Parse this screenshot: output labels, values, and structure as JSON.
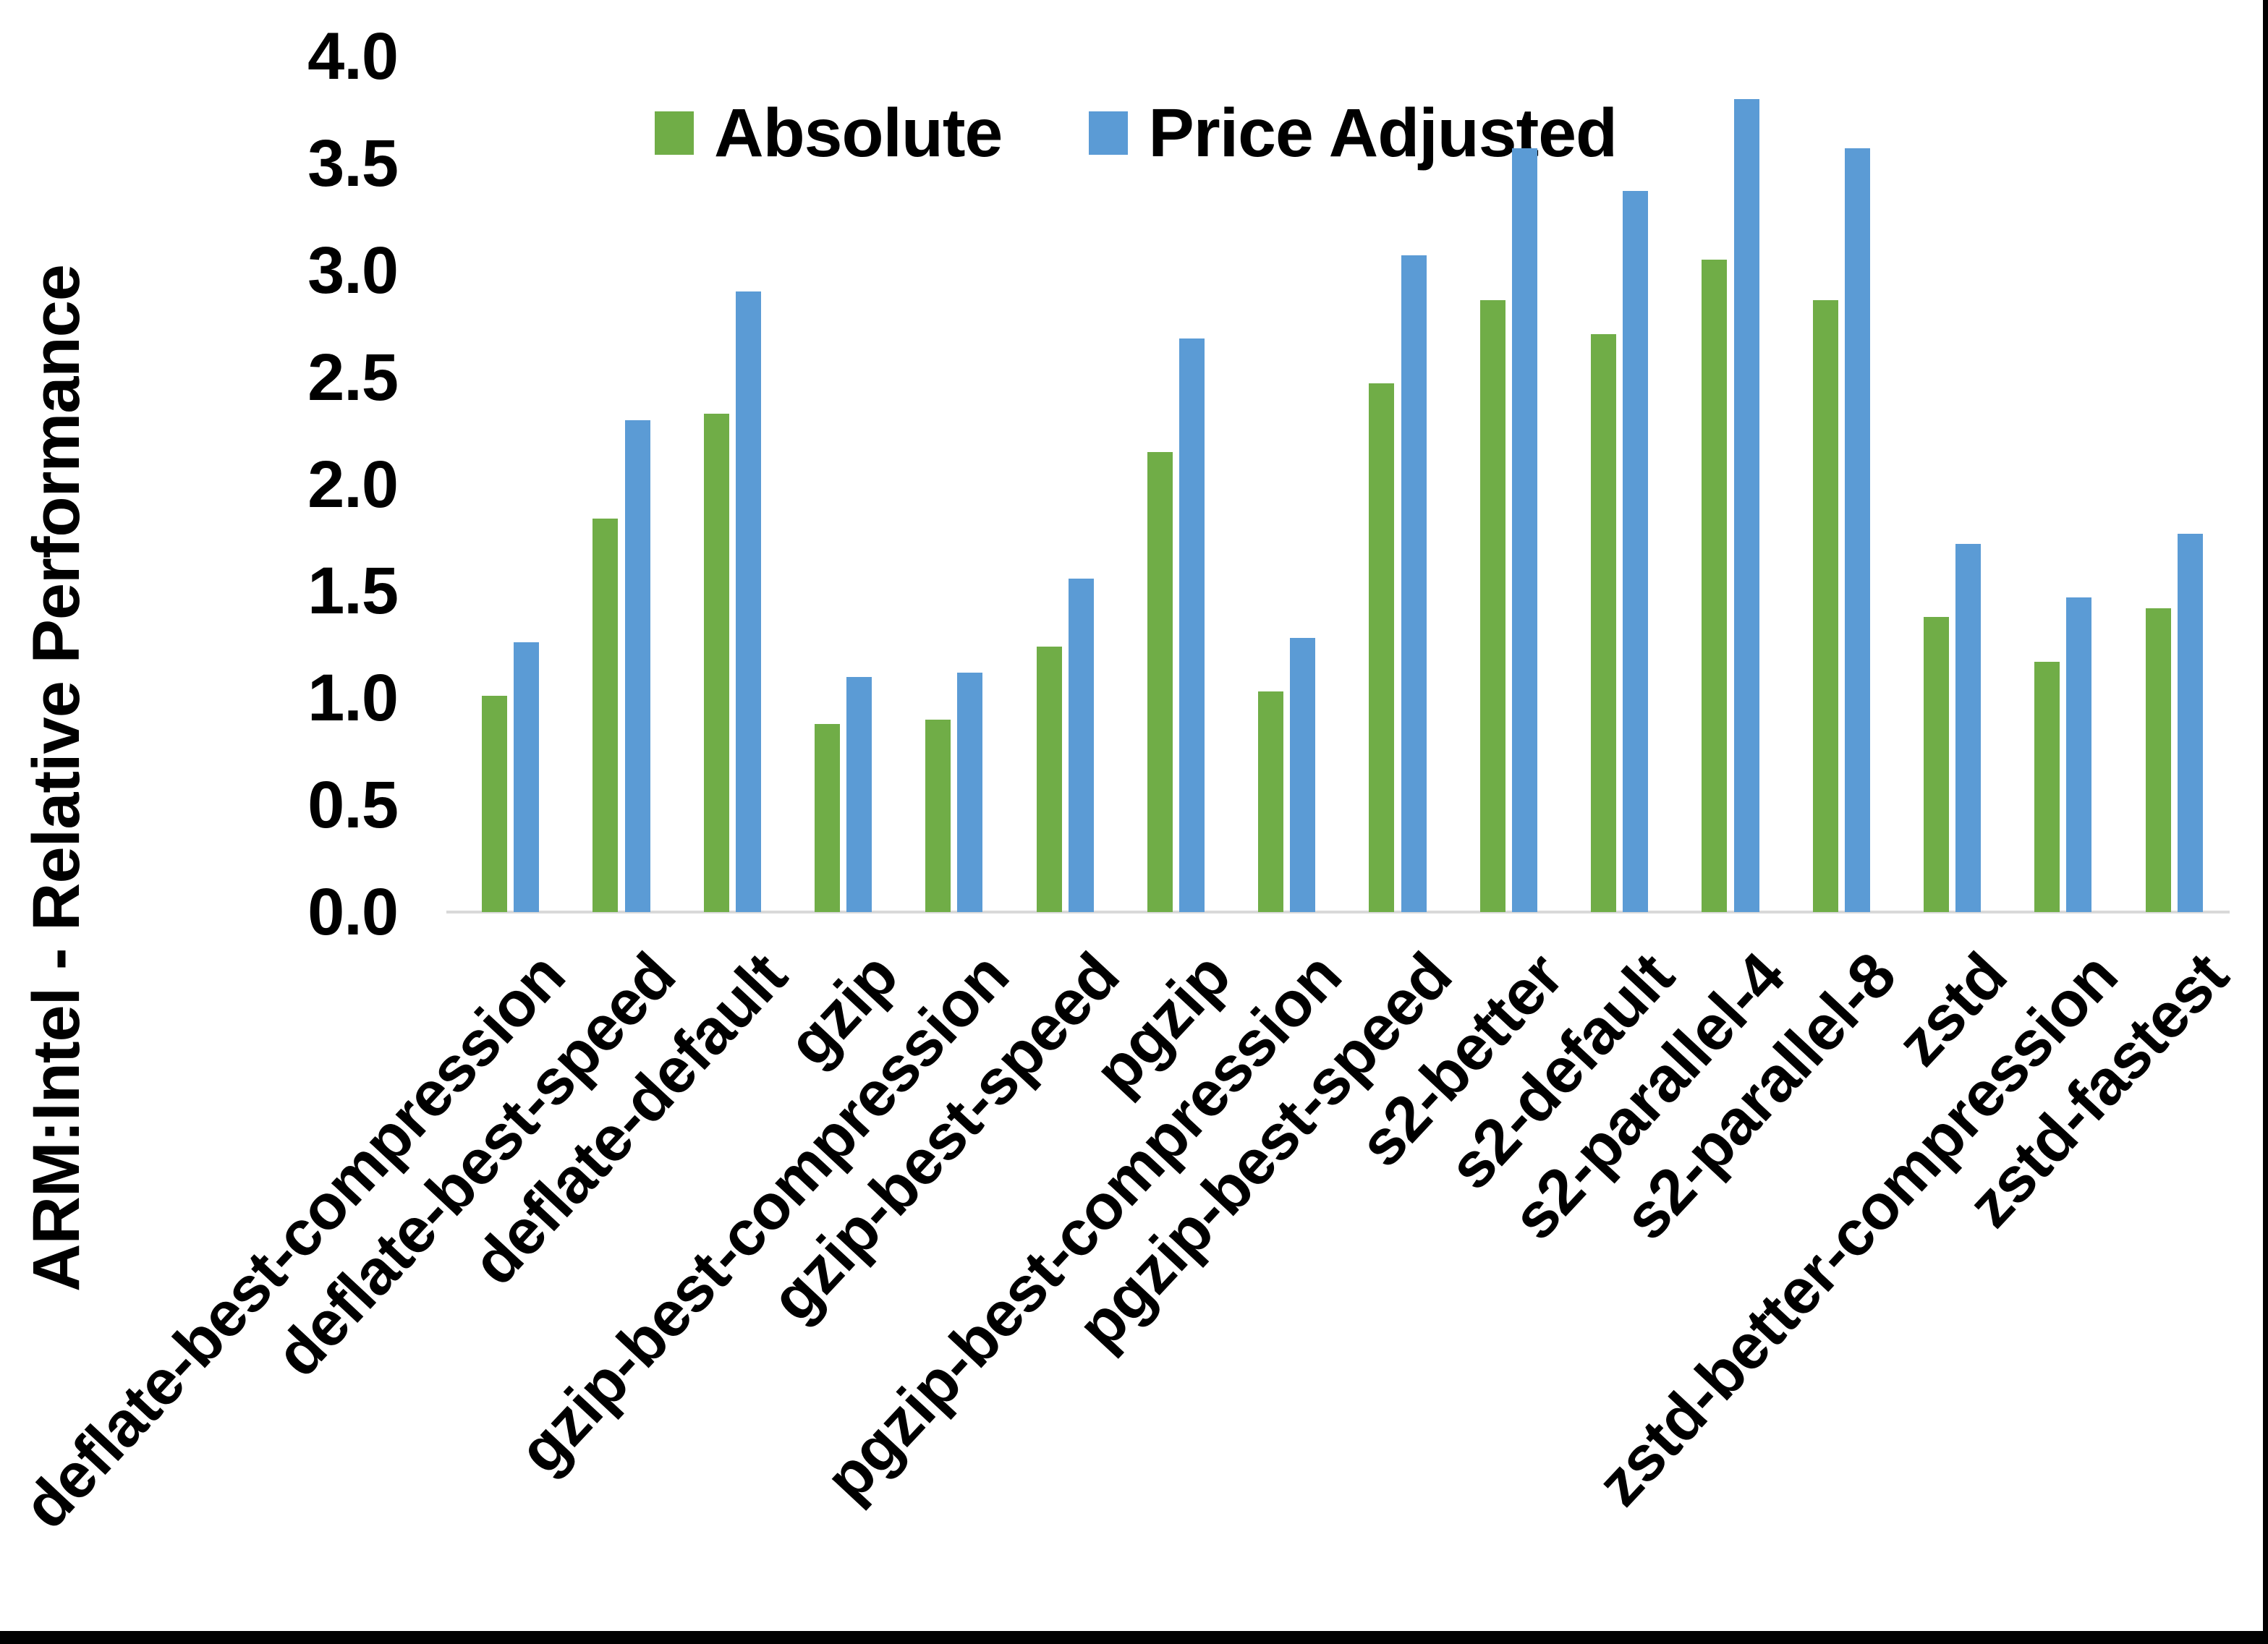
{
  "figure": {
    "background": "#FFFFFF",
    "right_edge_color": "#000000",
    "bottom_edge_color": "#000000"
  },
  "legend": {
    "items": [
      {
        "label": "Absolute",
        "color": "#70AD47"
      },
      {
        "label": "Price Adjusted",
        "color": "#5B9BD5"
      }
    ]
  },
  "chart_data": {
    "type": "bar",
    "title": "",
    "xlabel": "",
    "ylabel": "ARM:Intel - Relative Performance",
    "ylim": [
      0.0,
      4.0
    ],
    "ytick_labels": [
      "0.0",
      "0.5",
      "1.0",
      "1.5",
      "2.0",
      "2.5",
      "3.0",
      "3.5",
      "4.0"
    ],
    "grid": false,
    "legend_position": "top-center",
    "axis_line_color": "#D9D9D9",
    "categories": [
      "deflate-best-compression",
      "deflate-best-speed",
      "deflate-default",
      "gzip",
      "gzip-best-compression",
      "gzip-best-speed",
      "pgzip",
      "pgzip-best-compression",
      "pgzip-best-speed",
      "s2-better",
      "s2-default",
      "s2-parallel-4",
      "s2-parallel-8",
      "zstd",
      "zstd-better-compression",
      "zstd-fastest"
    ],
    "series": [
      {
        "name": "Absolute",
        "color": "#70AD47",
        "values": [
          1.01,
          1.84,
          2.33,
          0.88,
          0.9,
          1.24,
          2.15,
          1.03,
          2.47,
          2.86,
          2.7,
          3.05,
          2.86,
          1.38,
          1.17,
          1.42
        ]
      },
      {
        "name": "Price Adjusted",
        "color": "#5B9BD5",
        "values": [
          1.26,
          2.3,
          2.9,
          1.1,
          1.12,
          1.56,
          2.68,
          1.28,
          3.07,
          3.57,
          3.37,
          3.8,
          3.57,
          1.72,
          1.47,
          1.77
        ]
      }
    ]
  }
}
